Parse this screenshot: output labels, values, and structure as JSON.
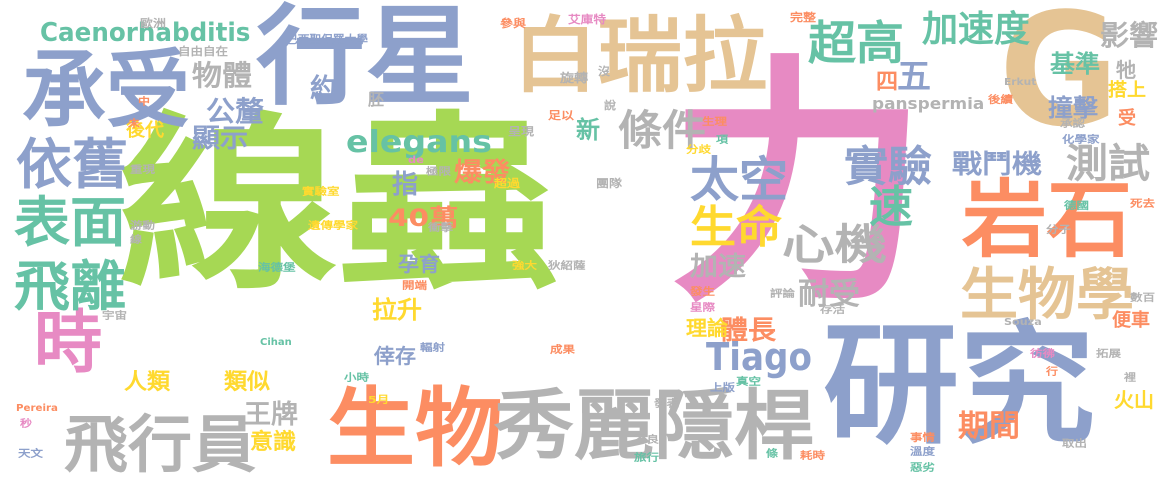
{
  "palette": {
    "green": "#a6d854",
    "pink": "#e78ac3",
    "blue": "#8da0cb",
    "orange": "#fc8d62",
    "teal": "#66c2a5",
    "yellow": "#ffd92f",
    "tan": "#e5c494",
    "gray": "#b3b3b3"
  },
  "words": [
    {
      "text": "線蟲",
      "color": "green",
      "weight": 1.0
    },
    {
      "text": "力",
      "color": "pink",
      "weight": 0.95
    },
    {
      "text": "研究",
      "color": "blue",
      "weight": 0.55
    },
    {
      "text": "行星",
      "color": "blue",
      "weight": 0.48
    },
    {
      "text": "白瑞拉",
      "color": "tan",
      "weight": 0.45
    },
    {
      "text": "G",
      "color": "tan",
      "weight": 0.5
    },
    {
      "text": "生物",
      "color": "orange",
      "weight": 0.4
    },
    {
      "text": "秀麗",
      "color": "gray",
      "weight": 0.4
    },
    {
      "text": "隱桿",
      "color": "gray",
      "weight": 0.4
    },
    {
      "text": "承受",
      "color": "blue",
      "weight": 0.38
    },
    {
      "text": "岩石",
      "color": "orange",
      "weight": 0.35
    },
    {
      "text": "飛行員",
      "color": "gray",
      "weight": 0.3
    },
    {
      "text": "時",
      "color": "pink",
      "weight": 0.3
    },
    {
      "text": "生物學",
      "color": "tan",
      "weight": 0.25
    },
    {
      "text": "表面",
      "color": "teal",
      "weight": 0.24
    },
    {
      "text": "飛離",
      "color": "teal",
      "weight": 0.24
    },
    {
      "text": "超高",
      "color": "teal",
      "weight": 0.23
    },
    {
      "text": "依舊",
      "color": "blue",
      "weight": 0.22
    },
    {
      "text": "太空",
      "color": "blue",
      "weight": 0.22
    },
    {
      "text": "Caenorhabditis",
      "color": "teal",
      "weight": 0.2
    },
    {
      "text": "條件",
      "color": "gray",
      "weight": 0.2
    },
    {
      "text": "實驗",
      "color": "blue",
      "weight": 0.2
    },
    {
      "text": "心機",
      "color": "gray",
      "weight": 0.2
    },
    {
      "text": "測試",
      "color": "gray",
      "weight": 0.19
    },
    {
      "text": "Tiago",
      "color": "blue",
      "weight": 0.18
    },
    {
      "text": "加速度",
      "color": "teal",
      "weight": 0.17
    },
    {
      "text": "生命",
      "color": "yellow",
      "weight": 0.17
    },
    {
      "text": "速",
      "color": "teal",
      "weight": 0.17
    },
    {
      "text": "elegans",
      "color": "teal",
      "weight": 0.16
    },
    {
      "text": "五",
      "color": "blue",
      "weight": 0.15
    },
    {
      "text": "戰鬥機",
      "color": "blue",
      "weight": 0.14
    },
    {
      "text": "影響",
      "color": "gray",
      "weight": 0.14
    },
    {
      "text": "物體",
      "color": "gray",
      "weight": 0.13
    },
    {
      "text": "公釐",
      "color": "blue",
      "weight": 0.13
    },
    {
      "text": "耐受",
      "color": "gray",
      "weight": 0.13
    },
    {
      "text": "期間",
      "color": "orange",
      "weight": 0.13
    },
    {
      "text": "爆發",
      "color": "orange",
      "weight": 0.12
    },
    {
      "text": "體長",
      "color": "orange",
      "weight": 0.12
    },
    {
      "text": "基準",
      "color": "teal",
      "weight": 0.12
    },
    {
      "text": "撞擊",
      "color": "blue",
      "weight": 0.12
    },
    {
      "text": "王牌",
      "color": "gray",
      "weight": 0.12
    },
    {
      "text": "加速",
      "color": "gray",
      "weight": 0.12
    },
    {
      "text": "40萬",
      "color": "orange",
      "weight": 0.12
    },
    {
      "text": "顯示",
      "color": "blue",
      "weight": 0.12
    },
    {
      "text": "約",
      "color": "blue",
      "weight": 0.12
    },
    {
      "text": "指",
      "color": "blue",
      "weight": 0.12
    },
    {
      "text": "四",
      "color": "orange",
      "weight": 0.12
    },
    {
      "text": "新",
      "color": "teal",
      "weight": 0.12
    },
    {
      "text": "拉升",
      "color": "yellow",
      "weight": 0.11
    },
    {
      "text": "理論",
      "color": "yellow",
      "weight": 0.11
    },
    {
      "text": "人類",
      "color": "yellow",
      "weight": 0.11
    },
    {
      "text": "意識",
      "color": "yellow",
      "weight": 0.11
    },
    {
      "text": "火山",
      "color": "yellow",
      "weight": 0.11
    },
    {
      "text": "類似",
      "color": "yellow",
      "weight": 0.1
    },
    {
      "text": "後代",
      "color": "yellow",
      "weight": 0.1
    },
    {
      "text": "倖存",
      "color": "blue",
      "weight": 0.1
    },
    {
      "text": "孕育",
      "color": "blue",
      "weight": 0.1
    },
    {
      "text": "便車",
      "color": "orange",
      "weight": 0.1
    },
    {
      "text": "搭上",
      "color": "yellow",
      "weight": 0.1
    },
    {
      "text": "受",
      "color": "orange",
      "weight": 0.1
    },
    {
      "text": "牠",
      "color": "gray",
      "weight": 0.1
    },
    {
      "text": "panspermia",
      "color": "gray",
      "weight": 0.09
    },
    {
      "text": "胚",
      "color": "gray",
      "weight": 0.08
    },
    {
      "text": "巴西聖保羅大學",
      "color": "blue",
      "weight": 0.06
    },
    {
      "text": "自由自在",
      "color": "gray",
      "weight": 0.05
    },
    {
      "text": "歐洲",
      "color": "gray",
      "weight": 0.05
    },
    {
      "text": "參與",
      "color": "orange",
      "weight": 0.05
    },
    {
      "text": "艾庫特",
      "color": "pink",
      "weight": 0.05
    },
    {
      "text": "完整",
      "color": "orange",
      "weight": 0.05
    },
    {
      "text": "旋轉",
      "color": "gray",
      "weight": 0.06
    },
    {
      "text": "沒",
      "color": "gray",
      "weight": 0.05
    },
    {
      "text": "足以",
      "color": "orange",
      "weight": 0.05
    },
    {
      "text": "說",
      "color": "gray",
      "weight": 0.05
    },
    {
      "text": "呈現",
      "color": "gray",
      "weight": 0.05
    },
    {
      "text": "生理",
      "color": "orange",
      "weight": 0.05
    },
    {
      "text": "項",
      "color": "teal",
      "weight": 0.05
    },
    {
      "text": "分歧",
      "color": "yellow",
      "weight": 0.05
    },
    {
      "text": "承認",
      "color": "gray",
      "weight": 0.05
    },
    {
      "text": "化學家",
      "color": "blue",
      "weight": 0.05
    },
    {
      "text": "後續",
      "color": "orange",
      "weight": 0.05
    },
    {
      "text": "Erkut",
      "color": "gray",
      "weight": 0.05
    },
    {
      "text": "中",
      "color": "orange",
      "weight": 0.05
    },
    {
      "text": "未",
      "color": "orange",
      "weight": 0.05
    },
    {
      "text": "重現",
      "color": "gray",
      "weight": 0.05
    },
    {
      "text": "de",
      "color": "pink",
      "weight": 0.05
    },
    {
      "text": "極限",
      "color": "gray",
      "weight": 0.05
    },
    {
      "text": "超過",
      "color": "yellow",
      "weight": 0.05
    },
    {
      "text": "團隊",
      "color": "gray",
      "weight": 0.05
    },
    {
      "text": "實驗室",
      "color": "yellow",
      "weight": 0.05
    },
    {
      "text": "遺傳學家",
      "color": "yellow",
      "weight": 0.05
    },
    {
      "text": "衝擊",
      "color": "gray",
      "weight": 0.05
    },
    {
      "text": "游動",
      "color": "gray",
      "weight": 0.05
    },
    {
      "text": "線",
      "color": "gray",
      "weight": 0.05
    },
    {
      "text": "德國",
      "color": "teal",
      "weight": 0.05
    },
    {
      "text": "分子",
      "color": "gray",
      "weight": 0.05
    },
    {
      "text": "死去",
      "color": "orange",
      "weight": 0.05
    },
    {
      "text": "海德堡",
      "color": "teal",
      "weight": 0.05
    },
    {
      "text": "開端",
      "color": "orange",
      "weight": 0.05
    },
    {
      "text": "強大",
      "color": "yellow",
      "weight": 0.05
    },
    {
      "text": "狄紹薩",
      "color": "gray",
      "weight": 0.05
    },
    {
      "text": "發生",
      "color": "orange",
      "weight": 0.05
    },
    {
      "text": "評論",
      "color": "gray",
      "weight": 0.05
    },
    {
      "text": "數百",
      "color": "gray",
      "weight": 0.05
    },
    {
      "text": "星際",
      "color": "pink",
      "weight": 0.05
    },
    {
      "text": "存活",
      "color": "gray",
      "weight": 0.05
    },
    {
      "text": "宇宙",
      "color": "gray",
      "weight": 0.05
    },
    {
      "text": "Souza",
      "color": "gray",
      "weight": 0.05
    },
    {
      "text": "Cihan",
      "color": "teal",
      "weight": 0.05
    },
    {
      "text": "輻射",
      "color": "blue",
      "weight": 0.05
    },
    {
      "text": "成果",
      "color": "orange",
      "weight": 0.05
    },
    {
      "text": "彷彿",
      "color": "pink",
      "weight": 0.05
    },
    {
      "text": "拓展",
      "color": "gray",
      "weight": 0.05
    },
    {
      "text": "小時",
      "color": "teal",
      "weight": 0.05
    },
    {
      "text": "行",
      "color": "orange",
      "weight": 0.05
    },
    {
      "text": "上版",
      "color": "blue",
      "weight": 0.05
    },
    {
      "text": "真空",
      "color": "teal",
      "weight": 0.05
    },
    {
      "text": "裡",
      "color": "gray",
      "weight": 0.05
    },
    {
      "text": "Pereira",
      "color": "orange",
      "weight": 0.05
    },
    {
      "text": "5月",
      "color": "yellow",
      "weight": 0.05
    },
    {
      "text": "發表",
      "color": "gray",
      "weight": 0.05
    },
    {
      "text": "秒",
      "color": "pink",
      "weight": 0.05
    },
    {
      "text": "不良",
      "color": "gray",
      "weight": 0.05
    },
    {
      "text": "事情",
      "color": "orange",
      "weight": 0.05
    },
    {
      "text": "取出",
      "color": "gray",
      "weight": 0.05
    },
    {
      "text": "旅行",
      "color": "teal",
      "weight": 0.05
    },
    {
      "text": "溫度",
      "color": "blue",
      "weight": 0.05
    },
    {
      "text": "天文",
      "color": "blue",
      "weight": 0.05
    },
    {
      "text": "條",
      "color": "teal",
      "weight": 0.05
    },
    {
      "text": "耗時",
      "color": "orange",
      "weight": 0.05
    },
    {
      "text": "惡劣",
      "color": "teal",
      "weight": 0.05
    }
  ]
}
